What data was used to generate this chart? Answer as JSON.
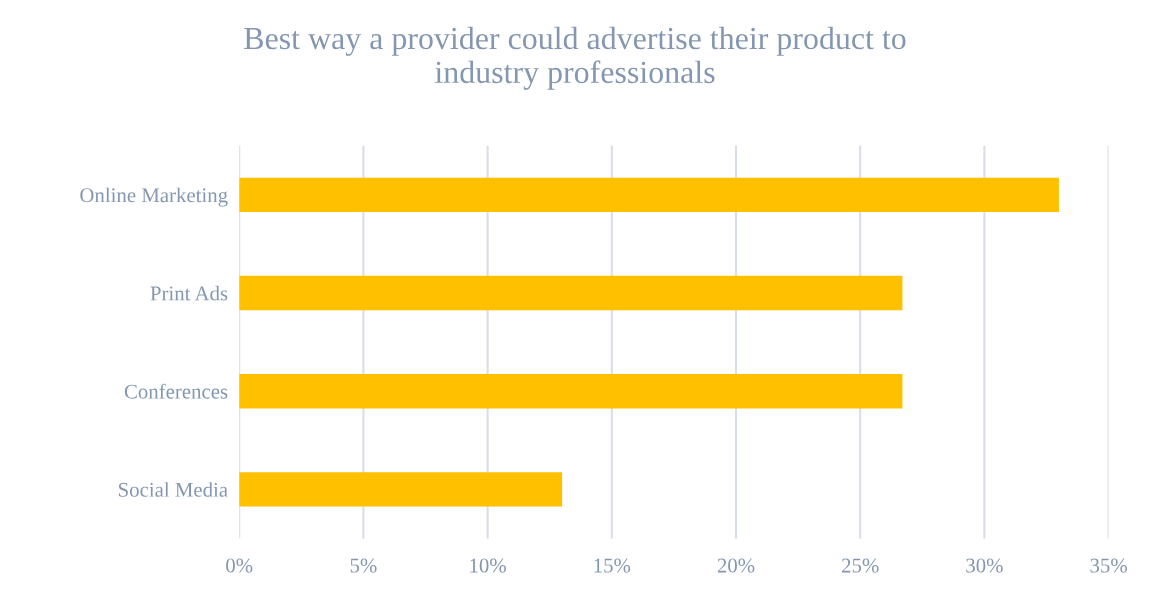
{
  "chart_data": {
    "type": "bar",
    "orientation": "horizontal",
    "title": "Best way a provider could advertise their product to\nindustry professionals",
    "categories": [
      "Online Marketing",
      "Print Ads",
      "Conferences",
      "Social Media"
    ],
    "values": [
      33,
      26.7,
      26.7,
      13
    ],
    "color": "#ffc000",
    "xlim": [
      0,
      35
    ],
    "xticks": [
      {
        "value": 0,
        "label": "0%"
      },
      {
        "value": 5,
        "label": "5%"
      },
      {
        "value": 10,
        "label": "10%"
      },
      {
        "value": 15,
        "label": "15%"
      },
      {
        "value": 20,
        "label": "20%"
      },
      {
        "value": 25,
        "label": "25%"
      },
      {
        "value": 30,
        "label": "30%"
      },
      {
        "value": 35,
        "label": "35%"
      }
    ],
    "grid": "x",
    "legend": false
  }
}
